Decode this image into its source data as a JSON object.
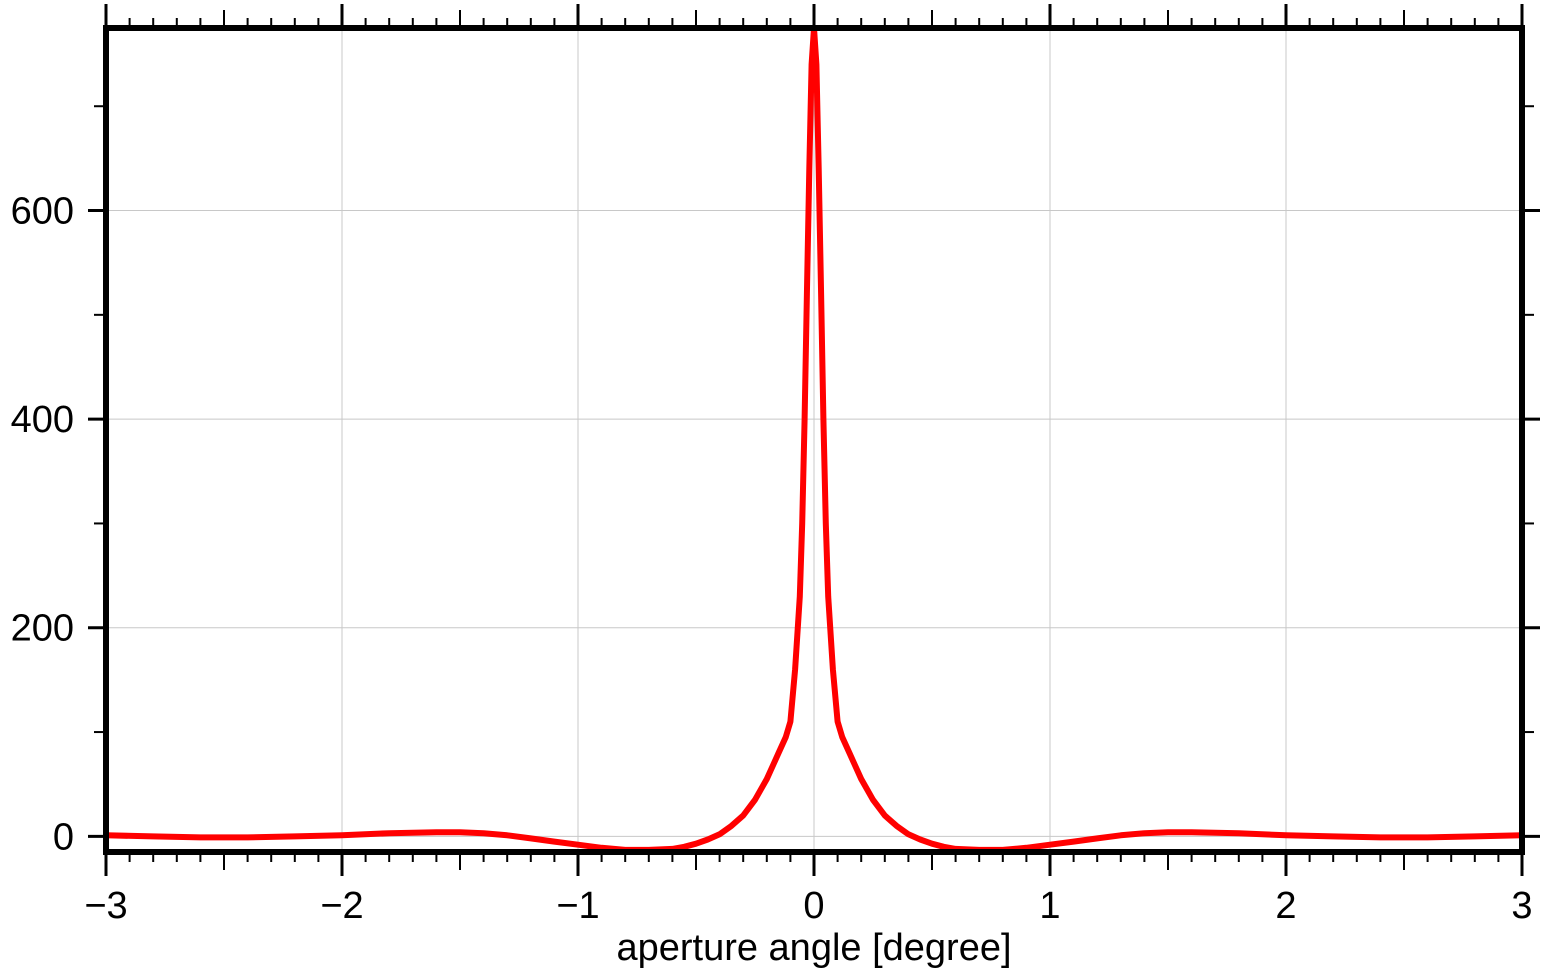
{
  "chart_data": {
    "type": "line",
    "title": "",
    "xlabel": "aperture angle [degree]",
    "ylabel": "",
    "xlim": [
      -3,
      3
    ],
    "ylim": [
      -15,
      775
    ],
    "grid": true,
    "x_ticks": [
      -3,
      -2,
      -1,
      0,
      1,
      2,
      3
    ],
    "x_tick_labels": [
      "−3",
      "−2",
      "−1",
      "0",
      "1",
      "2",
      "3"
    ],
    "y_ticks": [
      0,
      200,
      400,
      600
    ],
    "y_tick_labels": [
      "0",
      "200",
      "400",
      "600"
    ],
    "series": [
      {
        "color": "#ff0000",
        "x": [
          -3.0,
          -2.8,
          -2.6,
          -2.4,
          -2.2,
          -2.0,
          -1.8,
          -1.6,
          -1.5,
          -1.4,
          -1.3,
          -1.2,
          -1.1,
          -1.0,
          -0.9,
          -0.8,
          -0.7,
          -0.6,
          -0.55,
          -0.5,
          -0.45,
          -0.4,
          -0.35,
          -0.3,
          -0.25,
          -0.2,
          -0.17,
          -0.15,
          -0.12,
          -0.1,
          -0.08,
          -0.06,
          -0.05,
          -0.04,
          -0.03,
          -0.02,
          -0.01,
          0.0,
          0.01,
          0.02,
          0.03,
          0.04,
          0.05,
          0.06,
          0.08,
          0.1,
          0.12,
          0.15,
          0.17,
          0.2,
          0.25,
          0.3,
          0.35,
          0.4,
          0.45,
          0.5,
          0.55,
          0.6,
          0.7,
          0.8,
          0.9,
          1.0,
          1.1,
          1.2,
          1.3,
          1.4,
          1.5,
          1.6,
          1.8,
          2.0,
          2.2,
          2.4,
          2.6,
          2.8,
          3.0
        ],
        "y": [
          1,
          0,
          -1,
          -1,
          0,
          1,
          3,
          4,
          4,
          3,
          1,
          -2,
          -5,
          -8,
          -11,
          -13,
          -13,
          -12,
          -10,
          -7,
          -3,
          2,
          10,
          20,
          35,
          55,
          70,
          80,
          95,
          110,
          160,
          230,
          300,
          400,
          520,
          640,
          740,
          775,
          740,
          640,
          520,
          400,
          300,
          230,
          160,
          110,
          95,
          80,
          70,
          55,
          35,
          20,
          10,
          2,
          -3,
          -7,
          -10,
          -12,
          -13,
          -13,
          -11,
          -8,
          -5,
          -2,
          1,
          3,
          4,
          4,
          3,
          1,
          0,
          -1,
          -1,
          0,
          1
        ]
      }
    ]
  }
}
